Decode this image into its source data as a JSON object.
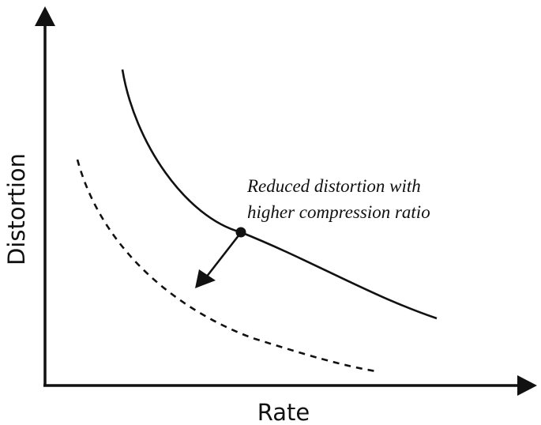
{
  "axes": {
    "x_label": "Rate",
    "y_label": "Distortion"
  },
  "annotation": {
    "line1": "Reduced distortion with",
    "line2": "higher compression ratio"
  },
  "curves": [
    {
      "style": "solid"
    },
    {
      "style": "dashed"
    }
  ],
  "colors": {
    "ink": "#111111",
    "background": "#ffffff"
  }
}
